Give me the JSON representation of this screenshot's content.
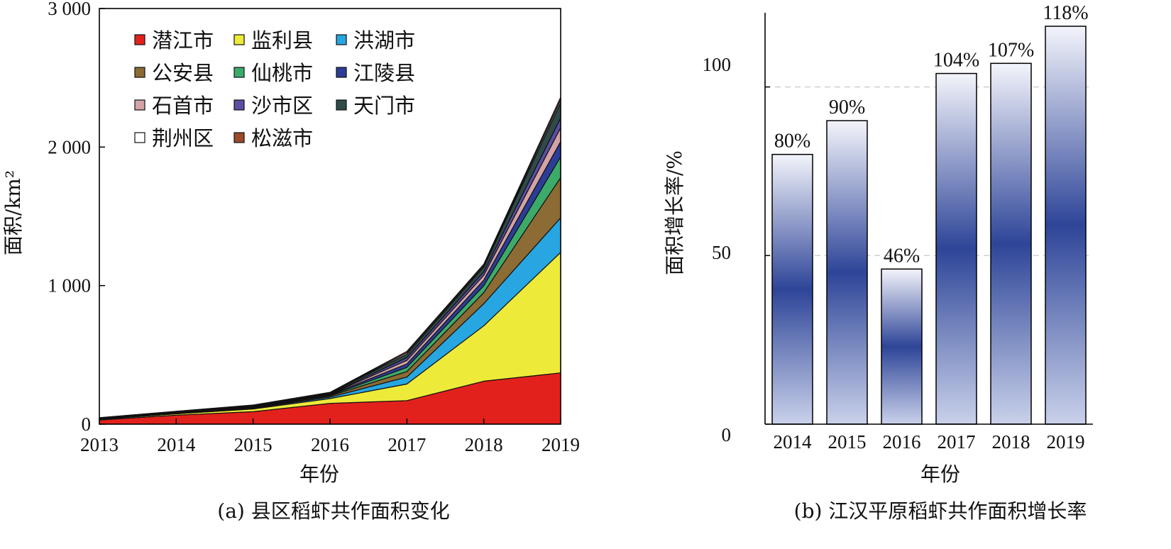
{
  "chart_data": [
    {
      "type": "area",
      "stacked": true,
      "caption": "(a) 县区稻虾共作面积变化",
      "xlabel": "年份",
      "ylabel": "面积/km²",
      "ylim": [
        0,
        3000
      ],
      "yticks": [
        0,
        1000,
        2000,
        3000
      ],
      "ytick_labels": [
        "0",
        "1 000",
        "2 000",
        "3 000"
      ],
      "x": [
        "2013",
        "2014",
        "2015",
        "2016",
        "2017",
        "2018",
        "2019"
      ],
      "legend_placement": "top-left",
      "series": [
        {
          "name": "潜江市",
          "color": "#e3211c",
          "values": [
            30,
            65,
            90,
            150,
            170,
            310,
            370
          ]
        },
        {
          "name": "监利县",
          "color": "#eeea3a",
          "values": [
            5,
            10,
            20,
            35,
            120,
            400,
            870
          ]
        },
        {
          "name": "洪湖市",
          "color": "#27a6e1",
          "values": [
            2,
            3,
            5,
            10,
            50,
            160,
            250
          ]
        },
        {
          "name": "公安县",
          "color": "#8c6b34",
          "values": [
            2,
            3,
            5,
            8,
            40,
            80,
            290
          ]
        },
        {
          "name": "仙桃市",
          "color": "#3cab6a",
          "values": [
            2,
            2,
            3,
            5,
            30,
            50,
            150
          ]
        },
        {
          "name": "江陵县",
          "color": "#2c3d98",
          "values": [
            1,
            2,
            3,
            4,
            25,
            40,
            110
          ]
        },
        {
          "name": "石首市",
          "color": "#d4a3a6",
          "values": [
            1,
            2,
            3,
            4,
            25,
            35,
            100
          ]
        },
        {
          "name": "沙市区",
          "color": "#5b4ea3",
          "values": [
            1,
            2,
            2,
            3,
            20,
            25,
            70
          ]
        },
        {
          "name": "天门市",
          "color": "#2f4b49",
          "values": [
            1,
            2,
            3,
            5,
            25,
            35,
            110
          ]
        },
        {
          "name": "荆州区",
          "color": "#ffffff",
          "values": [
            1,
            1,
            2,
            3,
            10,
            10,
            20
          ]
        },
        {
          "name": "松滋市",
          "color": "#9b4a2a",
          "values": [
            1,
            1,
            2,
            3,
            10,
            10,
            20
          ]
        }
      ]
    },
    {
      "type": "bar",
      "caption": "(b) 江汉平原稻虾共作面积增长率",
      "xlabel": "年份",
      "ylabel": "面积增长率/%",
      "ylim": [
        0,
        120
      ],
      "yticks": [
        0,
        50,
        100
      ],
      "ytick_labels": [
        "0",
        "50",
        "100"
      ],
      "grid": "horizontal-dashed",
      "categories": [
        "2014",
        "2015",
        "2016",
        "2017",
        "2018",
        "2019"
      ],
      "values": [
        80,
        90,
        46,
        104,
        107,
        118
      ],
      "labels": [
        "80%",
        "90%",
        "46%",
        "104%",
        "107%",
        "118%"
      ],
      "bar_gradient": [
        "#f3f4fb",
        "#2e4598"
      ]
    }
  ]
}
